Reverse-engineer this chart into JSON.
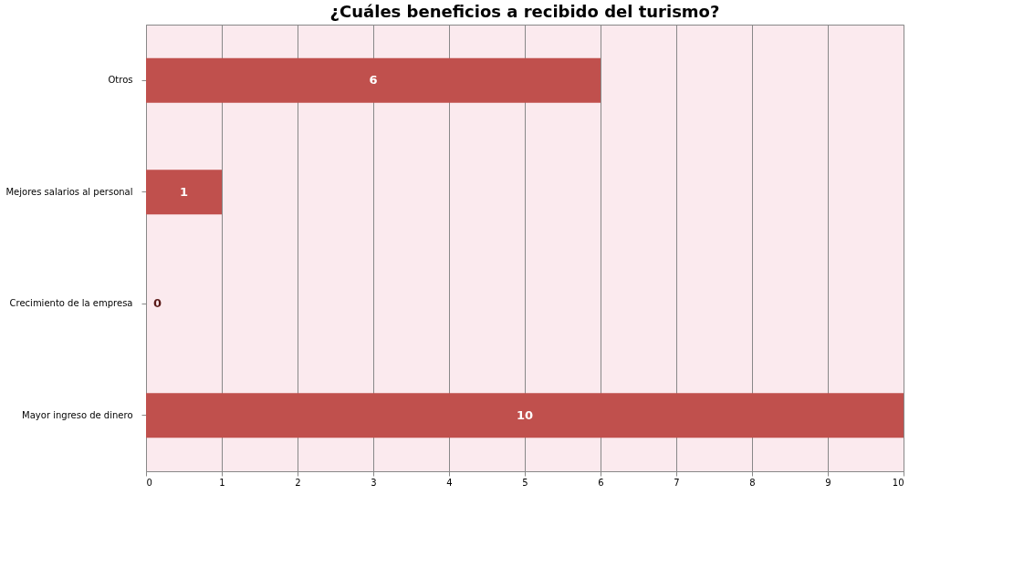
{
  "chart_data": {
    "type": "bar",
    "orientation": "horizontal",
    "title": "¿Cuáles beneficios a recibido del turismo?",
    "categories": [
      "Otros",
      "Mejores salarios al personal",
      "Crecimiento de la empresa",
      "Mayor ingreso de dinero"
    ],
    "values": [
      6,
      1,
      0,
      10
    ],
    "color": "#c0504d",
    "xlim": [
      0,
      10
    ],
    "xticks": [
      0,
      1,
      2,
      3,
      4,
      5,
      6,
      7,
      8,
      9,
      10
    ],
    "grid": "x",
    "data_labels": true
  }
}
